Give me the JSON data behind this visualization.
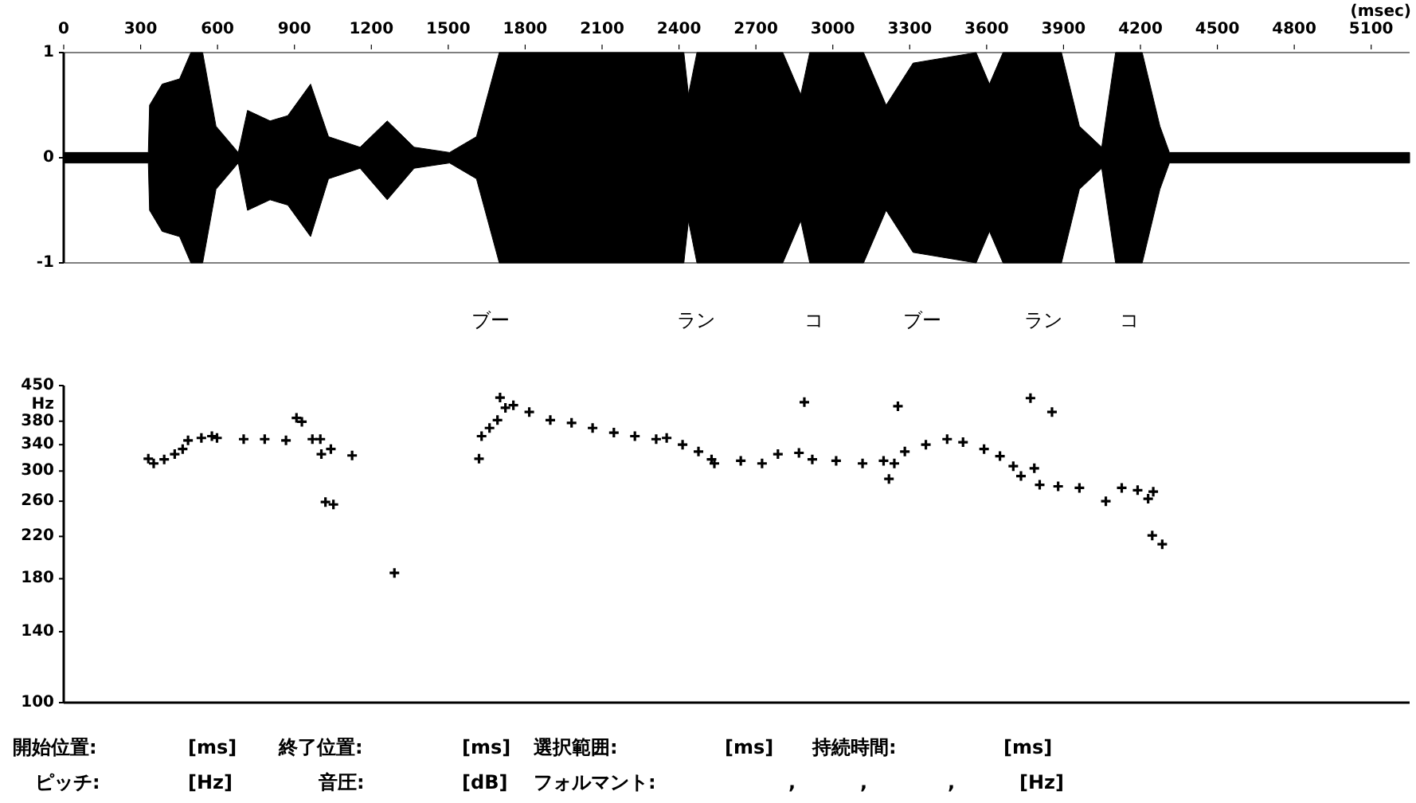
{
  "chart_data": [
    {
      "type": "area",
      "xlabel": "(msec)",
      "xlim": [
        0,
        5250
      ],
      "xticks": [
        0,
        300,
        600,
        900,
        1200,
        1500,
        1800,
        2100,
        2400,
        2700,
        3000,
        3300,
        3600,
        3900,
        4200,
        4500,
        4800,
        5100
      ],
      "ylim": [
        -1,
        1
      ],
      "yticks": [
        {
          "value": -1,
          "label": "-1"
        },
        0,
        1
      ],
      "x": [
        0,
        330,
        335,
        384,
        452,
        496,
        542,
        594,
        681,
        717,
        805,
        874,
        963,
        1033,
        1156,
        1262,
        1367,
        1505,
        1610,
        1699,
        2419,
        2437,
        2470,
        2805,
        2875,
        2910,
        3120,
        3208,
        3313,
        3559,
        3611,
        3664,
        3892,
        3962,
        4049,
        4103,
        4207,
        4276,
        4313,
        5250
      ],
      "series": [
        {
          "color": "#000000",
          "values": [
            0.05,
            0.05,
            0.5,
            0.7,
            0.75,
            1,
            1,
            0.3,
            0.05,
            0.45,
            0.35,
            0.4,
            0.7,
            0.2,
            0.1,
            0.35,
            0.1,
            0.05,
            0.2,
            1,
            1,
            0.6,
            1,
            1,
            0.6,
            1,
            1,
            0.5,
            0.9,
            1,
            0.7,
            1,
            1,
            0.3,
            0.1,
            1,
            1,
            0.3,
            0.05,
            0.05
          ]
        },
        {
          "color": "#000000",
          "values": [
            -0.05,
            -0.05,
            -0.5,
            -0.7,
            -0.75,
            -1,
            -1,
            -0.3,
            -0.05,
            -0.5,
            -0.4,
            -0.45,
            -0.75,
            -0.2,
            -0.1,
            -0.4,
            -0.1,
            -0.05,
            -0.2,
            -1,
            -1,
            -0.6,
            -1,
            -1,
            -0.6,
            -1,
            -1,
            -0.5,
            -0.9,
            -1,
            -0.7,
            -1,
            -1,
            -0.3,
            -0.1,
            -1,
            -1,
            -0.3,
            -0.05,
            -0.05
          ]
        }
      ],
      "annotations": [
        "ブー",
        "ラン",
        "コ",
        "ブー",
        "ラン",
        "コ"
      ]
    },
    {
      "type": "scatter",
      "ylabel": "Hz",
      "log": "y",
      "marker": "cross",
      "tick_labels": "y",
      "xlim": [
        0,
        5250
      ],
      "ylim": [
        100,
        450
      ],
      "yticks": [
        100,
        140,
        180,
        220,
        260,
        300,
        340,
        380,
        450
      ],
      "x": [
        330,
        351,
        392,
        433,
        464,
        485,
        537,
        578,
        598,
        702,
        784,
        867,
        908,
        929,
        970,
        1001,
        1005,
        1042,
        1021,
        1052,
        1125,
        1290,
        1620,
        1630,
        1661,
        1692,
        1702,
        1723,
        1754,
        1816,
        1898,
        1981,
        2063,
        2146,
        2228,
        2311,
        2352,
        2414,
        2476,
        2527,
        2538,
        2641,
        2724,
        2786,
        2868,
        2889,
        2920,
        3013,
        3116,
        3198,
        3219,
        3240,
        3254,
        3281,
        3363,
        3446,
        3508,
        3590,
        3652,
        3704,
        3734,
        3771,
        3786,
        3855,
        3807,
        3879,
        3962,
        4065,
        4127,
        4189,
        4230,
        4250,
        4246,
        4285
      ],
      "series": [
        {
          "color": "#000000",
          "values": [
            318,
            311,
            317,
            325,
            333,
            347,
            351,
            354,
            351,
            349,
            349,
            347,
            386,
            379,
            349,
            349,
            325,
            333,
            259,
            256,
            323,
            185,
            318,
            354,
            368,
            382,
            425,
            405,
            410,
            397,
            382,
            377,
            368,
            360,
            354,
            349,
            351,
            340,
            329,
            317,
            311,
            315,
            311,
            325,
            327,
            416,
            317,
            315,
            311,
            315,
            289,
            311,
            408,
            329,
            340,
            349,
            344,
            333,
            322,
            307,
            293,
            424,
            304,
            397,
            281,
            279,
            277,
            260,
            277,
            274,
            263,
            272,
            221,
            212
          ]
        }
      ],
      "annotations": [
        "開始位置:",
        "[ms]",
        "終了位置:",
        "[ms]",
        "選択範囲:",
        "[ms]",
        "持続時間:",
        "[ms]",
        "ピッチ:",
        "[Hz]",
        "音圧:",
        "[dB]",
        "フォルマント:",
        ",",
        ",",
        ",",
        "[Hz]"
      ]
    }
  ]
}
